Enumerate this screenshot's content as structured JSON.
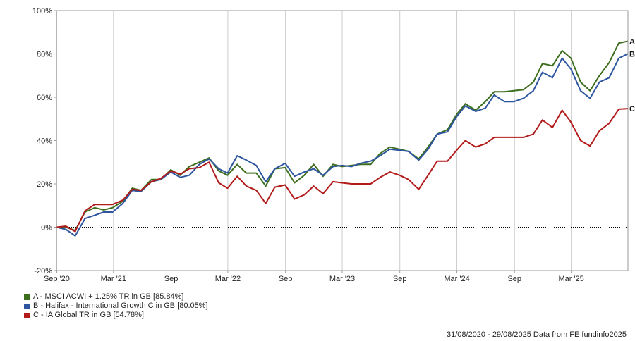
{
  "chart_data": {
    "type": "line",
    "y_ticks": [
      "100%",
      "80%",
      "60%",
      "40%",
      "20%",
      "0%",
      "-20%"
    ],
    "ylim": [
      -20,
      100
    ],
    "x_ticks": [
      "Sep '20",
      "Mar '21",
      "Sep",
      "Mar '22",
      "Sep",
      "Mar '23",
      "Sep",
      "Mar '24",
      "Sep",
      "Mar '25"
    ],
    "x_tick_dates": [
      "2020-09-01",
      "2021-03-01",
      "2021-09-01",
      "2022-03-01",
      "2022-09-01",
      "2023-03-01",
      "2023-09-01",
      "2024-03-01",
      "2024-09-01",
      "2025-03-01"
    ],
    "x_range": [
      "2020-08-31",
      "2025-08-29"
    ],
    "zero_line": "dotted",
    "grid": "vertical",
    "series": [
      {
        "letter": "A",
        "name": "A - MSCI ACWI + 1.25% TR in GB [85.84%]",
        "color": "#3c6e1e",
        "points": [
          [
            "2020-08-31",
            0
          ],
          [
            "2020-09-30",
            0
          ],
          [
            "2020-10-30",
            -1.5
          ],
          [
            "2020-11-30",
            7
          ],
          [
            "2020-12-31",
            9
          ],
          [
            "2021-01-29",
            8
          ],
          [
            "2021-02-26",
            9
          ],
          [
            "2021-03-31",
            12
          ],
          [
            "2021-04-30",
            18
          ],
          [
            "2021-05-28",
            17
          ],
          [
            "2021-06-30",
            22
          ],
          [
            "2021-07-30",
            22
          ],
          [
            "2021-08-31",
            26.5
          ],
          [
            "2021-09-30",
            24
          ],
          [
            "2021-10-29",
            28
          ],
          [
            "2021-11-30",
            30
          ],
          [
            "2021-12-31",
            32
          ],
          [
            "2022-01-31",
            26
          ],
          [
            "2022-02-28",
            24
          ],
          [
            "2022-03-31",
            29
          ],
          [
            "2022-04-29",
            25
          ],
          [
            "2022-05-31",
            25
          ],
          [
            "2022-06-30",
            19
          ],
          [
            "2022-07-29",
            27
          ],
          [
            "2022-08-31",
            27.5
          ],
          [
            "2022-09-30",
            20.5
          ],
          [
            "2022-10-31",
            24
          ],
          [
            "2022-11-30",
            29
          ],
          [
            "2022-12-30",
            23.5
          ],
          [
            "2023-01-31",
            29
          ],
          [
            "2023-02-28",
            28
          ],
          [
            "2023-03-31",
            28.5
          ],
          [
            "2023-04-28",
            29
          ],
          [
            "2023-05-31",
            29
          ],
          [
            "2023-06-30",
            34
          ],
          [
            "2023-07-31",
            37
          ],
          [
            "2023-08-31",
            36
          ],
          [
            "2023-09-29",
            35
          ],
          [
            "2023-10-31",
            31.5
          ],
          [
            "2023-11-30",
            37
          ],
          [
            "2023-12-29",
            43
          ],
          [
            "2024-01-31",
            45
          ],
          [
            "2024-02-29",
            52
          ],
          [
            "2024-03-28",
            57
          ],
          [
            "2024-04-30",
            54
          ],
          [
            "2024-05-31",
            58
          ],
          [
            "2024-06-28",
            62.5
          ],
          [
            "2024-07-31",
            62.5
          ],
          [
            "2024-08-30",
            63
          ],
          [
            "2024-09-30",
            63.5
          ],
          [
            "2024-10-31",
            67
          ],
          [
            "2024-11-29",
            75.5
          ],
          [
            "2024-12-31",
            74.5
          ],
          [
            "2025-01-31",
            81.5
          ],
          [
            "2025-02-28",
            78
          ],
          [
            "2025-03-31",
            67
          ],
          [
            "2025-04-30",
            63
          ],
          [
            "2025-05-30",
            70
          ],
          [
            "2025-06-30",
            76
          ],
          [
            "2025-07-31",
            85
          ],
          [
            "2025-08-29",
            85.84
          ]
        ]
      },
      {
        "letter": "B",
        "name": "B - Halifax - International Growth C in GB [80.05%]",
        "color": "#2d55a0",
        "points": [
          [
            "2020-08-31",
            0
          ],
          [
            "2020-09-30",
            -1
          ],
          [
            "2020-10-30",
            -4
          ],
          [
            "2020-11-30",
            4
          ],
          [
            "2020-12-31",
            5.5
          ],
          [
            "2021-01-29",
            7
          ],
          [
            "2021-02-26",
            7
          ],
          [
            "2021-03-31",
            11
          ],
          [
            "2021-04-30",
            17
          ],
          [
            "2021-05-28",
            16.5
          ],
          [
            "2021-06-30",
            21
          ],
          [
            "2021-07-30",
            22
          ],
          [
            "2021-08-31",
            25.5
          ],
          [
            "2021-09-30",
            23
          ],
          [
            "2021-10-29",
            24
          ],
          [
            "2021-11-30",
            29
          ],
          [
            "2021-12-31",
            31.5
          ],
          [
            "2022-01-31",
            27
          ],
          [
            "2022-02-28",
            25
          ],
          [
            "2022-03-31",
            33
          ],
          [
            "2022-04-29",
            31
          ],
          [
            "2022-05-31",
            28.5
          ],
          [
            "2022-06-30",
            21
          ],
          [
            "2022-07-29",
            27
          ],
          [
            "2022-08-31",
            29.5
          ],
          [
            "2022-09-30",
            23.5
          ],
          [
            "2022-10-31",
            25.5
          ],
          [
            "2022-11-30",
            27
          ],
          [
            "2022-12-30",
            24
          ],
          [
            "2023-01-31",
            28
          ],
          [
            "2023-02-28",
            28.5
          ],
          [
            "2023-03-31",
            28
          ],
          [
            "2023-04-28",
            29.5
          ],
          [
            "2023-05-31",
            30.5
          ],
          [
            "2023-06-30",
            33
          ],
          [
            "2023-07-31",
            36
          ],
          [
            "2023-08-31",
            35.5
          ],
          [
            "2023-09-29",
            35
          ],
          [
            "2023-10-31",
            31
          ],
          [
            "2023-11-30",
            36
          ],
          [
            "2023-12-29",
            43
          ],
          [
            "2024-01-31",
            44
          ],
          [
            "2024-02-29",
            51
          ],
          [
            "2024-03-28",
            56
          ],
          [
            "2024-04-30",
            53.5
          ],
          [
            "2024-05-31",
            55
          ],
          [
            "2024-06-28",
            61
          ],
          [
            "2024-07-31",
            58
          ],
          [
            "2024-08-30",
            58
          ],
          [
            "2024-09-30",
            59.5
          ],
          [
            "2024-10-31",
            63
          ],
          [
            "2024-11-29",
            71.5
          ],
          [
            "2024-12-31",
            69
          ],
          [
            "2025-01-31",
            78
          ],
          [
            "2025-02-28",
            73
          ],
          [
            "2025-03-31",
            63
          ],
          [
            "2025-04-30",
            59.5
          ],
          [
            "2025-05-30",
            67
          ],
          [
            "2025-06-30",
            69
          ],
          [
            "2025-07-31",
            78
          ],
          [
            "2025-08-29",
            80.05
          ]
        ]
      },
      {
        "letter": "C",
        "name": "C - IA Global TR in GB [54.78%]",
        "color": "#b31b1b",
        "points": [
          [
            "2020-08-31",
            0
          ],
          [
            "2020-09-30",
            0.5
          ],
          [
            "2020-10-30",
            -2
          ],
          [
            "2020-11-30",
            7.5
          ],
          [
            "2020-12-31",
            10.5
          ],
          [
            "2021-01-29",
            10.5
          ],
          [
            "2021-02-26",
            10.5
          ],
          [
            "2021-03-31",
            12.5
          ],
          [
            "2021-04-30",
            17.5
          ],
          [
            "2021-05-28",
            17
          ],
          [
            "2021-06-30",
            21
          ],
          [
            "2021-07-30",
            22.5
          ],
          [
            "2021-08-31",
            26
          ],
          [
            "2021-09-30",
            24.5
          ],
          [
            "2021-10-29",
            27
          ],
          [
            "2021-11-30",
            27.5
          ],
          [
            "2021-12-31",
            30
          ],
          [
            "2022-01-31",
            20.5
          ],
          [
            "2022-02-28",
            18
          ],
          [
            "2022-03-31",
            23.5
          ],
          [
            "2022-04-29",
            19
          ],
          [
            "2022-05-31",
            17
          ],
          [
            "2022-06-30",
            11
          ],
          [
            "2022-07-29",
            18.5
          ],
          [
            "2022-08-31",
            19.5
          ],
          [
            "2022-09-30",
            13
          ],
          [
            "2022-10-31",
            15
          ],
          [
            "2022-11-30",
            19
          ],
          [
            "2022-12-30",
            15.5
          ],
          [
            "2023-01-31",
            21
          ],
          [
            "2023-02-28",
            20.5
          ],
          [
            "2023-03-31",
            20
          ],
          [
            "2023-04-28",
            20
          ],
          [
            "2023-05-31",
            20
          ],
          [
            "2023-06-30",
            23
          ],
          [
            "2023-07-31",
            25.5
          ],
          [
            "2023-08-31",
            24
          ],
          [
            "2023-09-29",
            22
          ],
          [
            "2023-10-31",
            17.5
          ],
          [
            "2023-11-30",
            24
          ],
          [
            "2023-12-29",
            30.5
          ],
          [
            "2024-01-31",
            30.5
          ],
          [
            "2024-02-29",
            35.5
          ],
          [
            "2024-03-28",
            40
          ],
          [
            "2024-04-30",
            37
          ],
          [
            "2024-05-31",
            38.5
          ],
          [
            "2024-06-28",
            41.5
          ],
          [
            "2024-07-31",
            41.5
          ],
          [
            "2024-08-30",
            41.5
          ],
          [
            "2024-09-30",
            41.5
          ],
          [
            "2024-10-31",
            43
          ],
          [
            "2024-11-29",
            49.5
          ],
          [
            "2024-12-31",
            46
          ],
          [
            "2025-01-31",
            54
          ],
          [
            "2025-02-28",
            48.5
          ],
          [
            "2025-03-31",
            40
          ],
          [
            "2025-04-30",
            37.5
          ],
          [
            "2025-05-30",
            44.5
          ],
          [
            "2025-06-30",
            48
          ],
          [
            "2025-07-31",
            54.5
          ],
          [
            "2025-08-29",
            54.78
          ]
        ]
      }
    ]
  },
  "footer": {
    "text": "31/08/2020 - 29/08/2025 Data from FE fundinfo2025"
  }
}
